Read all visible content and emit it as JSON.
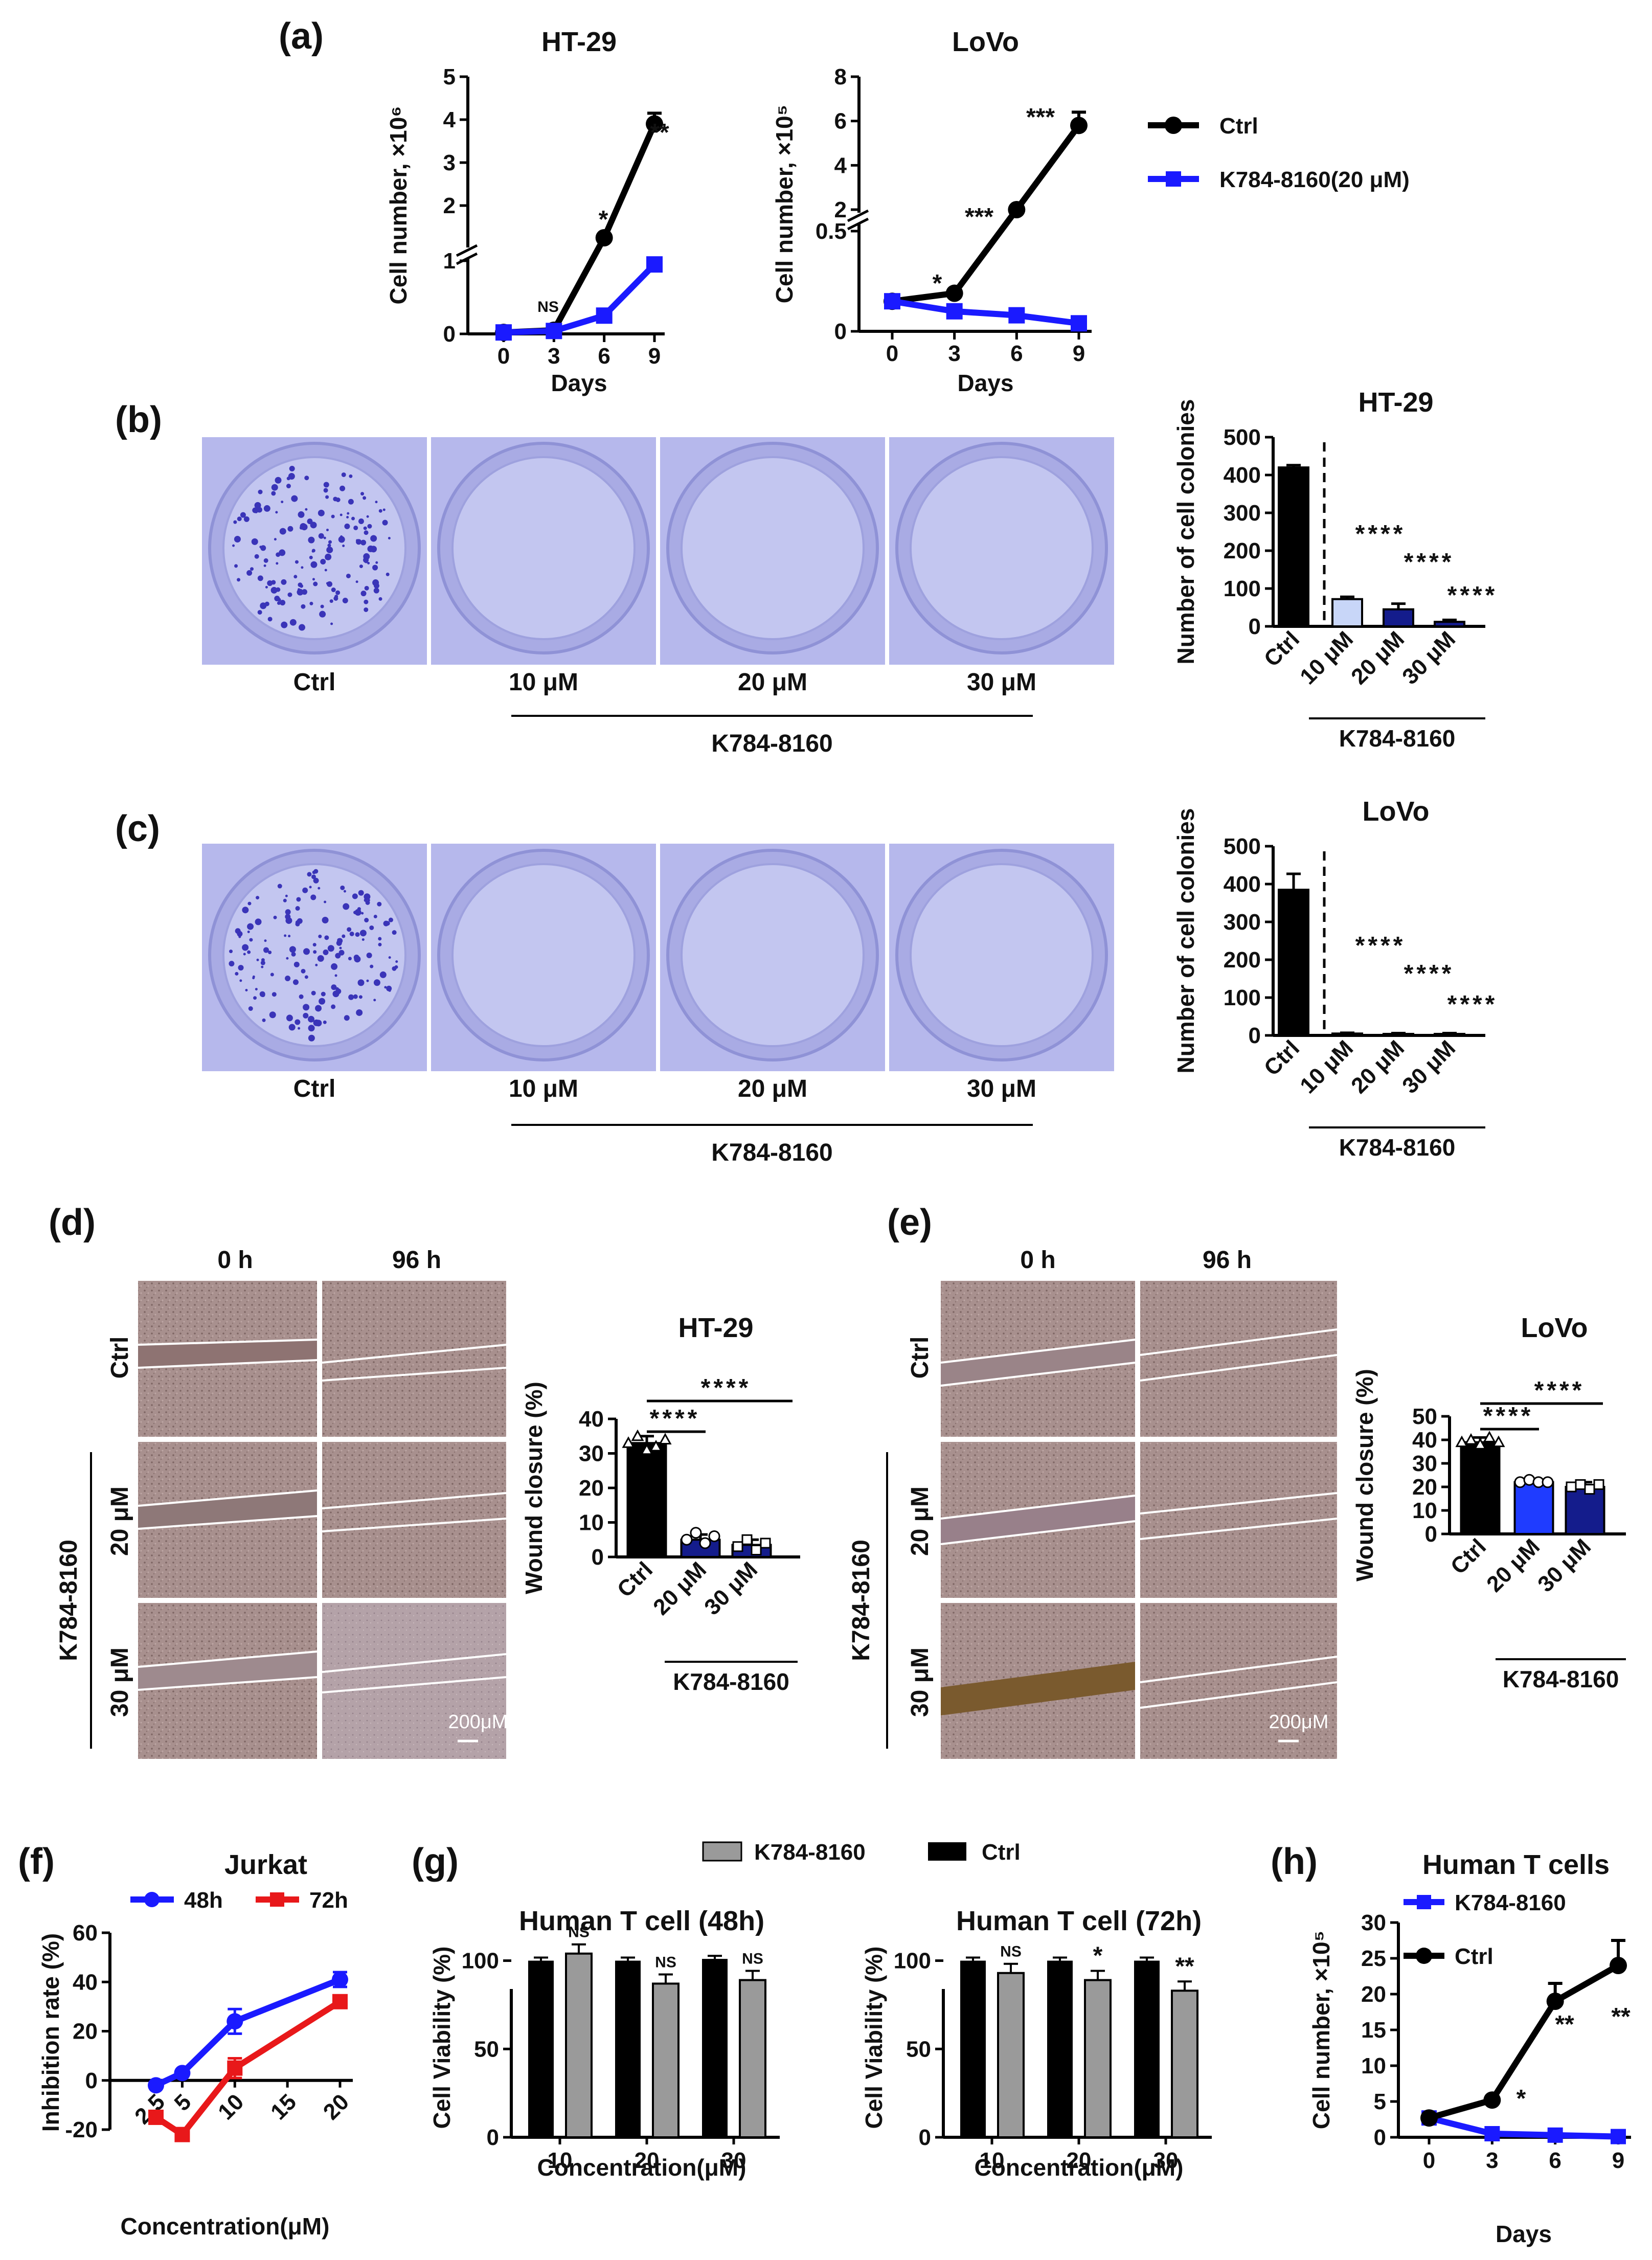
{
  "panel_labels": {
    "a": "(a)",
    "b": "(b)",
    "c": "(c)",
    "d": "(d)",
    "e": "(e)",
    "f": "(f)",
    "g": "(g)",
    "h": "(h)"
  },
  "colors": {
    "ctrl": "#000000",
    "treat": "#1a1aff",
    "red": "#e8181a",
    "grey": "#9a9a9a",
    "navy": "#141c8c",
    "blue_bar": "#1f3cff",
    "light_bar": "#c8d6f8",
    "plate": "#b6b8ec",
    "tissue": "#a8908e"
  },
  "legend_a": {
    "ctrl": "Ctrl",
    "treat": "K784-8160(20 μM)"
  },
  "chart_data": [
    {
      "id": "a1",
      "type": "line",
      "title": "HT-29",
      "xlabel": "Days",
      "ylabel": "Cell number, ×10⁶",
      "x": [
        0,
        3,
        6,
        9
      ],
      "series": [
        {
          "name": "Ctrl",
          "values": [
            0.02,
            0.05,
            1.25,
            3.9
          ],
          "err": [
            0,
            0,
            0,
            0.25
          ]
        },
        {
          "name": "K784-8160(20 μM)",
          "values": [
            0.02,
            0.04,
            0.25,
            0.95
          ],
          "err": [
            0,
            0,
            0,
            0
          ]
        }
      ],
      "yticks": [
        "0",
        "1",
        "2",
        "3",
        "4",
        "5"
      ],
      "xticks": [
        "0",
        "3",
        "6",
        "9"
      ],
      "annotations": [
        "NS",
        "*",
        "**"
      ]
    },
    {
      "id": "a2",
      "type": "line",
      "title": "LoVo",
      "xlabel": "Days",
      "ylabel": "Cell number, ×10⁵",
      "x": [
        0,
        3,
        6,
        9
      ],
      "series": [
        {
          "name": "Ctrl",
          "values": [
            0.15,
            0.19,
            2.0,
            5.8
          ],
          "err": [
            0,
            0,
            0,
            0.6
          ]
        },
        {
          "name": "K784-8160(20 μM)",
          "values": [
            0.15,
            0.1,
            0.08,
            0.04
          ],
          "err": [
            0,
            0,
            0,
            0
          ]
        }
      ],
      "yticks": [
        "0",
        "0.5",
        "2",
        "4",
        "6",
        "8"
      ],
      "xticks": [
        "0",
        "3",
        "6",
        "9"
      ],
      "annotations": [
        "*",
        "***",
        "***"
      ]
    },
    {
      "id": "b",
      "type": "bar",
      "title": "HT-29",
      "ylabel": "Number of cell colonies",
      "group_label": "K784-8160",
      "ylim": [
        0,
        500
      ],
      "categories": [
        "Ctrl",
        "10 μM",
        "20 μM",
        "30 μM"
      ],
      "values": [
        420,
        72,
        45,
        12
      ],
      "err": [
        6,
        6,
        15,
        5
      ],
      "yticks": [
        "0",
        "100",
        "200",
        "300",
        "400",
        "500"
      ],
      "annotations": [
        "****",
        "****",
        "****"
      ]
    },
    {
      "id": "c",
      "type": "bar",
      "title": "LoVo",
      "ylabel": "Number of cell colonies",
      "group_label": "K784-8160",
      "ylim": [
        0,
        500
      ],
      "categories": [
        "Ctrl",
        "10 μM",
        "20 μM",
        "30 μM"
      ],
      "values": [
        385,
        5,
        4,
        4
      ],
      "err": [
        42,
        2,
        2,
        2
      ],
      "yticks": [
        "0",
        "100",
        "200",
        "300",
        "400",
        "500"
      ],
      "annotations": [
        "****",
        "****",
        "****"
      ]
    },
    {
      "id": "d",
      "type": "bar",
      "title": "HT-29",
      "ylabel": "Wound closure (%)",
      "group_label": "K784-8160",
      "ylim": [
        0,
        40
      ],
      "categories": [
        "Ctrl",
        "20 μM",
        "30 μM"
      ],
      "values": [
        33,
        5,
        3.5
      ],
      "err": [
        2,
        1.5,
        1.5
      ],
      "yticks": [
        "0",
        "10",
        "20",
        "30",
        "40"
      ],
      "annotations": [
        "****",
        "****"
      ]
    },
    {
      "id": "e",
      "type": "bar",
      "title": "LoVo",
      "ylabel": "Wound closure (%)",
      "group_label": "K784-8160",
      "ylim": [
        0,
        50
      ],
      "categories": [
        "Ctrl",
        "20 μM",
        "30 μM"
      ],
      "values": [
        39,
        22,
        20
      ],
      "err": [
        2,
        1,
        2
      ],
      "yticks": [
        "0",
        "10",
        "20",
        "30",
        "40",
        "50"
      ],
      "annotations": [
        "****",
        "****"
      ]
    },
    {
      "id": "f",
      "type": "line",
      "title": "Jurkat",
      "xlabel": "Concentration(μM)",
      "ylabel": "Inhibition rate (%)",
      "x": [
        2.5,
        5,
        10,
        20
      ],
      "series": [
        {
          "name": "48h",
          "values": [
            -2,
            3,
            24,
            41
          ],
          "err": [
            0,
            0,
            5,
            3
          ]
        },
        {
          "name": "72h",
          "values": [
            -15,
            -22,
            5,
            32
          ],
          "err": [
            0,
            0,
            4,
            0
          ]
        }
      ],
      "yticks": [
        "-20",
        "0",
        "20",
        "40",
        "60"
      ],
      "xticks": [
        "2.5",
        "5",
        "10",
        "15",
        "20"
      ]
    },
    {
      "id": "g1",
      "type": "bar",
      "title": "Human T cell (48h)",
      "xlabel": "Concentration(μM)",
      "ylabel": "Cell Viability (%)",
      "ylim": [
        0,
        110
      ],
      "categories": [
        "10",
        "20",
        "30"
      ],
      "series": [
        {
          "name": "Ctrl",
          "values": [
            100,
            100,
            101
          ]
        },
        {
          "name": "K784-8160",
          "values": [
            104,
            87,
            89
          ]
        }
      ],
      "yticks": [
        "0",
        "50",
        "100"
      ],
      "annotations": [
        "NS",
        "NS",
        "NS"
      ]
    },
    {
      "id": "g2",
      "type": "bar",
      "title": "Human T cell (72h)",
      "xlabel": "Concentration(μM)",
      "ylabel": "Cell Viability (%)",
      "ylim": [
        0,
        110
      ],
      "categories": [
        "10",
        "20",
        "30"
      ],
      "series": [
        {
          "name": "Ctrl",
          "values": [
            100,
            100,
            100
          ]
        },
        {
          "name": "K784-8160",
          "values": [
            93,
            89,
            83
          ]
        }
      ],
      "yticks": [
        "0",
        "50",
        "100"
      ],
      "annotations": [
        "NS",
        "*",
        "**"
      ]
    },
    {
      "id": "h",
      "type": "line",
      "title": "Human T cells",
      "xlabel": "Days",
      "ylabel": "Cell number, ×10⁵",
      "x": [
        0,
        3,
        6,
        9
      ],
      "series": [
        {
          "name": "K784-8160",
          "values": [
            2.7,
            0.5,
            0.3,
            0.1
          ],
          "err": [
            0,
            0,
            0,
            0
          ]
        },
        {
          "name": "Ctrl",
          "values": [
            2.7,
            5.2,
            19,
            24
          ],
          "err": [
            0,
            0,
            2.5,
            3.5
          ]
        }
      ],
      "yticks": [
        "0",
        "5",
        "10",
        "15",
        "20",
        "25",
        "30"
      ],
      "xticks": [
        "0",
        "3",
        "6",
        "9"
      ],
      "annotations": [
        "*",
        "**",
        "**"
      ]
    }
  ],
  "legend_g": {
    "treat": "K784-8160",
    "ctrl": "Ctrl"
  },
  "plates_b": {
    "labels": [
      "Ctrl",
      "10 μM",
      "20 μM",
      "30 μM"
    ],
    "group": "K784-8160"
  },
  "plates_c": {
    "labels": [
      "Ctrl",
      "10 μM",
      "20 μM",
      "30 μM"
    ],
    "group": "K784-8160"
  },
  "wound_d": {
    "cols": [
      "0 h",
      "96 h"
    ],
    "rows": [
      "Ctrl",
      "20 μM",
      "30 μM"
    ],
    "group": "K784-8160",
    "scale": "200μM"
  },
  "wound_e": {
    "cols": [
      "0 h",
      "96 h"
    ],
    "rows": [
      "Ctrl",
      "20 μM",
      "30 μM"
    ],
    "group": "K784-8160",
    "scale": "200μM"
  }
}
